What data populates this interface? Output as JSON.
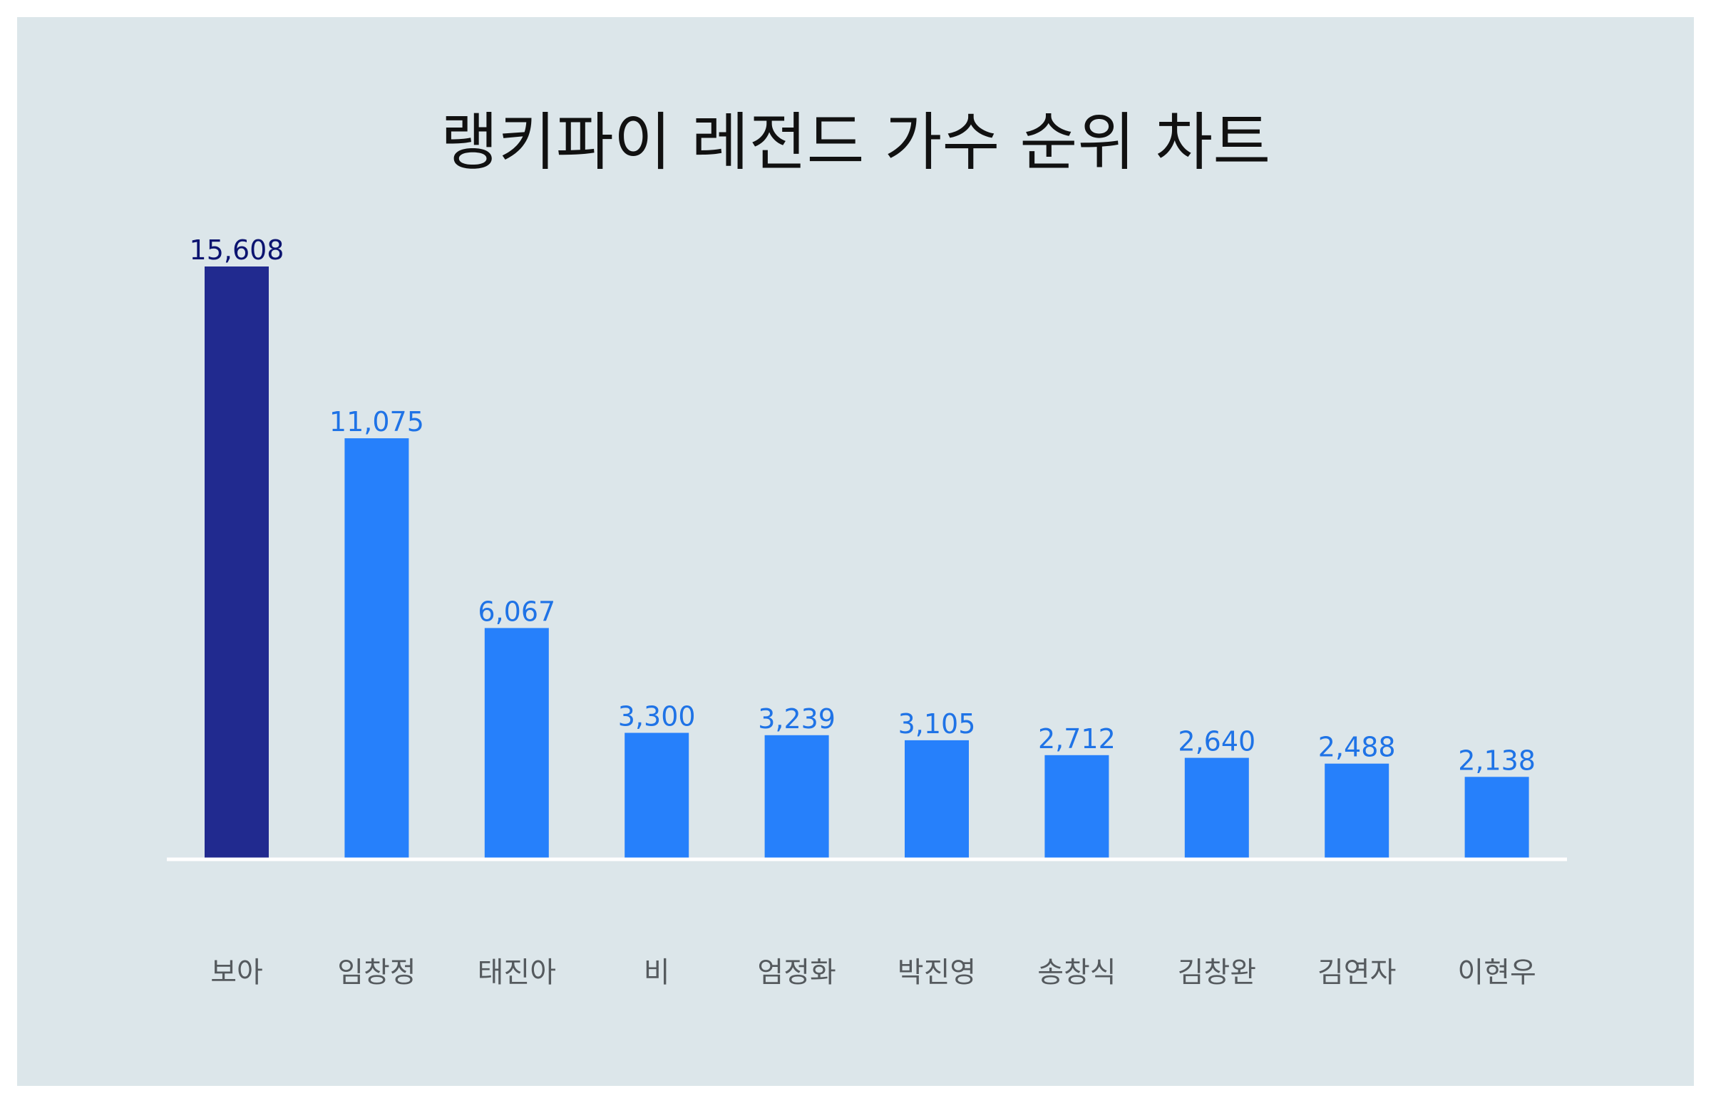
{
  "chart_data": {
    "type": "bar",
    "title": "랭키파이 레전드 가수 순위 차트",
    "categories": [
      "보아",
      "임창정",
      "태진아",
      "비",
      "엄정화",
      "박진영",
      "송창식",
      "김창완",
      "김연자",
      "이현우"
    ],
    "values": [
      15608,
      11075,
      6067,
      3300,
      3239,
      3105,
      2712,
      2640,
      2488,
      2138
    ],
    "value_labels": [
      "15,608",
      "11,075",
      "6,067",
      "3,300",
      "3,239",
      "3,105",
      "2,712",
      "2,640",
      "2,488",
      "2,138"
    ],
    "highlight_index": 0,
    "ylim": [
      0,
      15608
    ],
    "grid": false,
    "legend": "none",
    "colors": {
      "highlight_bar": "#212a8f",
      "highlight_label": "#0c1470",
      "bar": "#2680fb",
      "label": "#1f73e6",
      "category_label": "#555a5e",
      "baseline": "#ffffff",
      "background": "#dce6ea"
    }
  }
}
